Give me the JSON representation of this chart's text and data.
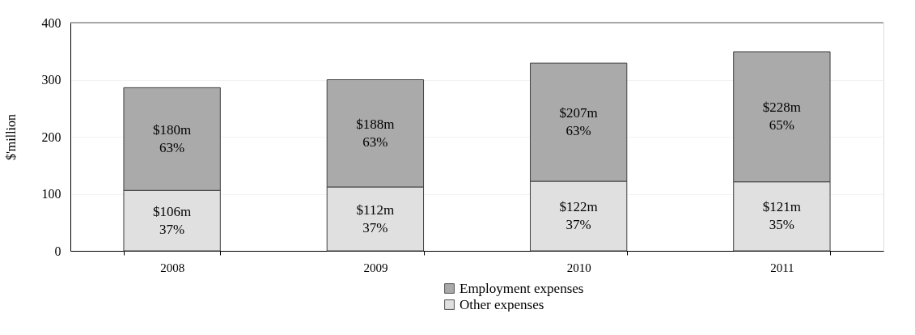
{
  "chart_data": {
    "type": "bar",
    "stacked": true,
    "ylabel": "$'million",
    "categories": [
      "2008",
      "2009",
      "2010",
      "2011"
    ],
    "series": [
      {
        "name": "Other expenses",
        "color": "#e0e0e0",
        "values": [
          106,
          112,
          122,
          121
        ],
        "value_labels": [
          "$106m",
          "$112m",
          "$122m",
          "$121m"
        ]
      },
      {
        "name": "Employment expenses",
        "color": "#aaaaaa",
        "values": [
          180,
          188,
          207,
          228
        ],
        "value_labels": [
          "$180m",
          "$188m",
          "$207m",
          "$228m"
        ]
      }
    ],
    "annotations": [
      "37%",
      "37%",
      "37%",
      "35%",
      "63%",
      "63%",
      "63%",
      "65%"
    ],
    "ylim": [
      0,
      400
    ],
    "yticks": [
      0,
      100,
      200,
      300,
      400
    ],
    "grid": "y",
    "legend": "bottom"
  }
}
